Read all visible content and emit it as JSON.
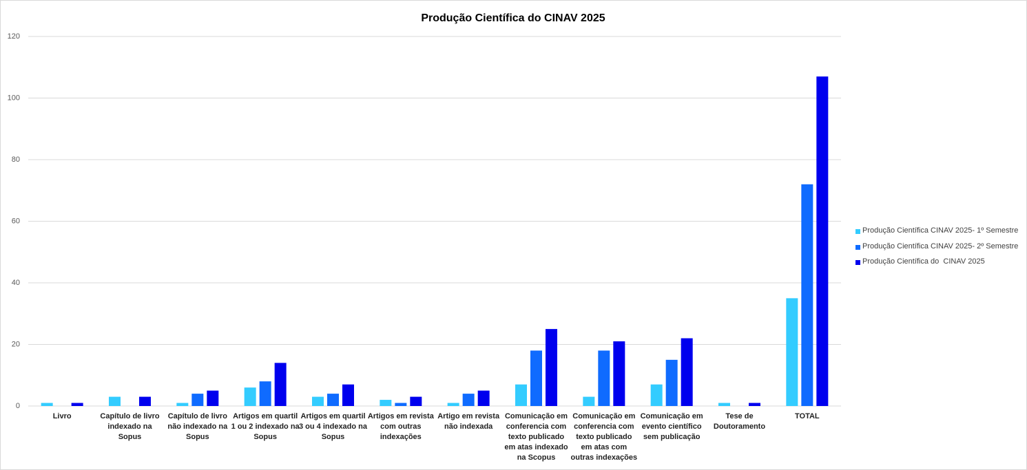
{
  "chart_data": {
    "type": "bar",
    "title": "Produção Científica do CINAV 2025",
    "categories": [
      "Livro",
      "Capítulo de livro indexado na Sopus",
      "Capítulo de livro não indexado na Sopus",
      "Artigos em quartil 1 ou 2 indexado na Sopus",
      "Artigos em quartil 3 ou 4 indexado na Sopus",
      "Artigos em revista com outras indexações",
      "Artigo em revista não indexada",
      "Comunicação em conferencia com texto publicado em atas indexado na Scopus",
      "Comunicação em conferencia com texto publicado em atas com outras indexações",
      "Comunicação em evento científico sem publicação",
      "Tese de Doutoramento",
      "TOTAL"
    ],
    "series": [
      {
        "name": "Produção Científica CINAV 2025- 1º Semestre",
        "color": "#33ccff",
        "values": [
          1,
          3,
          1,
          6,
          3,
          2,
          1,
          7,
          3,
          7,
          1,
          35
        ]
      },
      {
        "name": "Produção Científica CINAV 2025- 2º Semestre",
        "color": "#0f6bff",
        "values": [
          0,
          0,
          4,
          8,
          4,
          1,
          4,
          18,
          18,
          15,
          0,
          72
        ]
      },
      {
        "name": "Produção Científica do  CINAV 2025",
        "color": "#0000ee",
        "values": [
          1,
          3,
          5,
          14,
          7,
          3,
          5,
          25,
          21,
          22,
          1,
          107
        ]
      }
    ],
    "ylim": [
      0,
      120
    ],
    "yticks": [
      0,
      20,
      40,
      60,
      80,
      100,
      120
    ],
    "grid": true,
    "legend": "right"
  }
}
